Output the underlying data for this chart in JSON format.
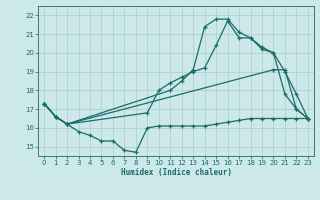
{
  "xlabel": "Humidex (Indice chaleur)",
  "xlim": [
    -0.5,
    23.5
  ],
  "ylim": [
    14.5,
    22.5
  ],
  "yticks": [
    15,
    16,
    17,
    18,
    19,
    20,
    21,
    22
  ],
  "xticks": [
    0,
    1,
    2,
    3,
    4,
    5,
    6,
    7,
    8,
    9,
    10,
    11,
    12,
    13,
    14,
    15,
    16,
    17,
    18,
    19,
    20,
    21,
    22,
    23
  ],
  "bg_color": "#cde8e8",
  "grid_color": "#aacece",
  "line_color": "#1a6b6b",
  "line1_x": [
    0,
    1,
    2,
    3,
    4,
    5,
    6,
    7,
    8,
    9,
    10,
    11,
    12,
    13,
    14,
    15,
    16,
    17,
    18,
    19,
    20,
    21,
    22,
    23
  ],
  "line1_y": [
    17.3,
    16.6,
    16.2,
    15.8,
    15.6,
    15.3,
    15.3,
    14.8,
    14.7,
    16.0,
    16.1,
    16.1,
    16.1,
    16.1,
    16.1,
    16.2,
    16.3,
    16.4,
    16.5,
    16.5,
    16.5,
    16.5,
    16.5,
    16.5
  ],
  "line2_x": [
    0,
    1,
    2,
    9,
    10,
    11,
    12,
    13,
    14,
    15,
    16,
    17,
    18,
    19,
    20,
    21,
    22,
    23
  ],
  "line2_y": [
    17.3,
    16.6,
    16.2,
    16.8,
    18.0,
    18.4,
    18.7,
    19.0,
    19.2,
    20.4,
    21.7,
    20.8,
    20.8,
    20.3,
    20.0,
    19.0,
    17.8,
    16.5
  ],
  "line3_x": [
    0,
    1,
    2,
    20,
    21,
    22,
    23
  ],
  "line3_y": [
    17.3,
    16.6,
    16.2,
    19.1,
    19.1,
    17.0,
    16.5
  ],
  "line4_x": [
    0,
    1,
    2,
    11,
    12,
    13,
    14,
    15,
    16,
    17,
    18,
    19,
    20,
    21,
    22,
    23
  ],
  "line4_y": [
    17.3,
    16.6,
    16.2,
    18.0,
    18.5,
    19.1,
    21.4,
    21.8,
    21.8,
    21.1,
    20.8,
    20.2,
    20.0,
    17.8,
    17.0,
    16.5
  ]
}
